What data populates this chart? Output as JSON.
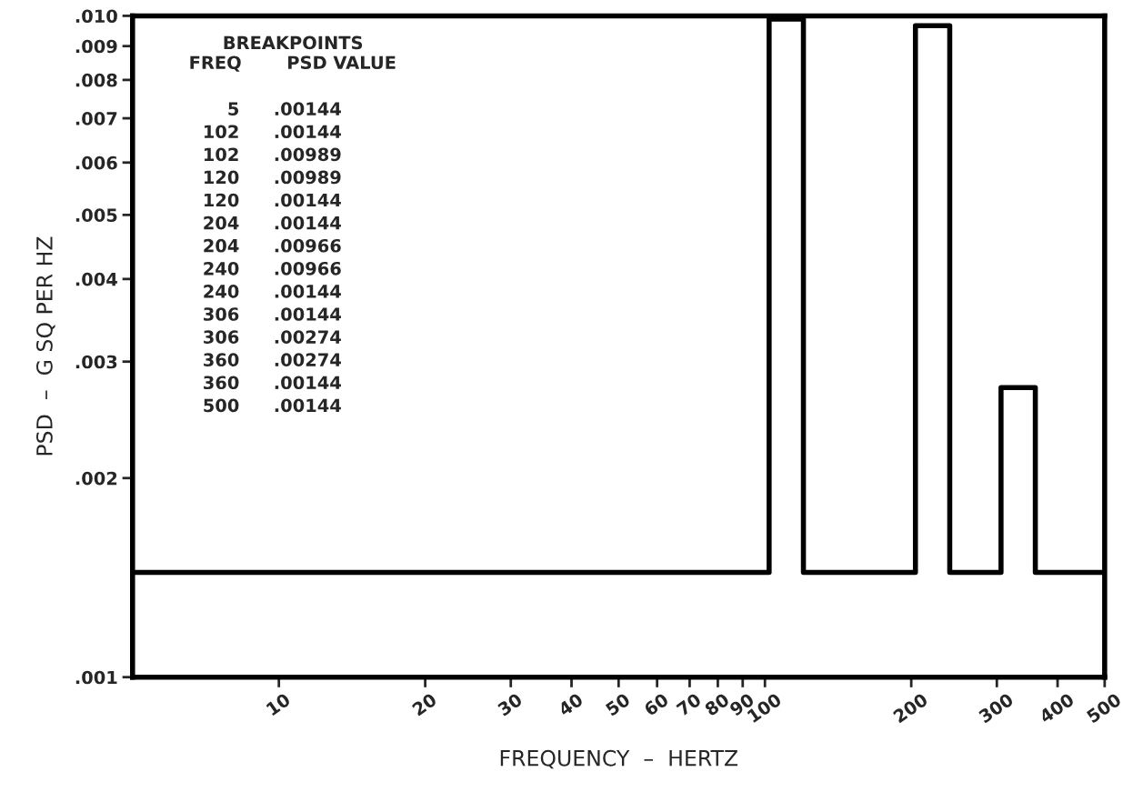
{
  "chart_data": {
    "type": "line",
    "xlabel": "FREQUENCY  –  HERTZ",
    "ylabel": "PSD  –  G SQ PER HZ",
    "x": [
      5,
      102,
      102,
      120,
      120,
      204,
      204,
      240,
      240,
      306,
      306,
      360,
      360,
      500
    ],
    "series": [
      {
        "color": "#000000",
        "values": [
          0.00144,
          0.00144,
          0.00989,
          0.00989,
          0.00144,
          0.00144,
          0.00966,
          0.00966,
          0.00144,
          0.00144,
          0.00274,
          0.00274,
          0.00144,
          0.00144
        ]
      }
    ],
    "log": "xy",
    "xlim": [
      5,
      500
    ],
    "ylim": [
      0.001,
      0.01
    ],
    "xticks": [
      10,
      20,
      30,
      40,
      50,
      60,
      70,
      80,
      90,
      100,
      200,
      300,
      400,
      500
    ],
    "yticks": [
      {
        "value": 0.001,
        "label": ".001"
      },
      {
        "value": 0.002,
        "label": ".002"
      },
      {
        "value": 0.003,
        "label": ".003"
      },
      {
        "value": 0.004,
        "label": ".004"
      },
      {
        "value": 0.005,
        "label": ".005"
      },
      {
        "value": 0.006,
        "label": ".006"
      },
      {
        "value": 0.007,
        "label": ".007"
      },
      {
        "value": 0.008,
        "label": ".008"
      },
      {
        "value": 0.009,
        "label": ".009"
      },
      {
        "value": 0.01,
        "label": ".010"
      }
    ],
    "grid": false,
    "marker": "none",
    "line_style": "solid",
    "annotations": [
      "BREAKPOINTS",
      "FREQ",
      "PSD VALUE",
      "5",
      ".00144",
      "102",
      ".00144",
      "102",
      ".00989",
      "120",
      ".00989",
      "120",
      ".00144",
      "204",
      ".00144",
      "204",
      ".00966",
      "240",
      ".00966",
      "240",
      ".00144",
      "306",
      ".00144",
      "306",
      ".00274",
      "360",
      ".00274",
      "360",
      ".00144",
      "500",
      ".00144"
    ]
  }
}
